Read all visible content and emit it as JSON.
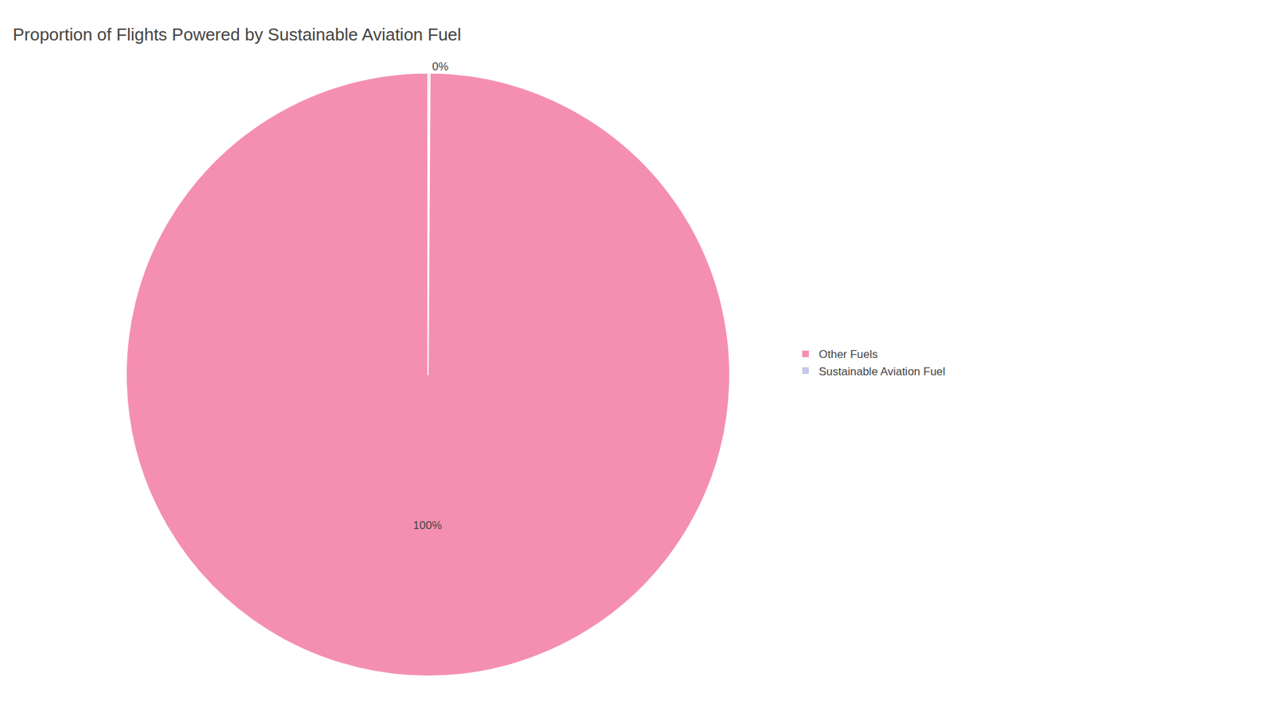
{
  "chart_data": {
    "type": "pie",
    "title": "Proportion of Flights Powered by Sustainable Aviation Fuel",
    "categories": [
      "Sustainable Aviation Fuel",
      "Other Fuels"
    ],
    "values": [
      0.1,
      99.9
    ],
    "value_labels": [
      "0%",
      "100%"
    ],
    "colors": [
      "#c5cae9",
      "#f48fb1"
    ],
    "data_labels": true,
    "legend": "right"
  }
}
